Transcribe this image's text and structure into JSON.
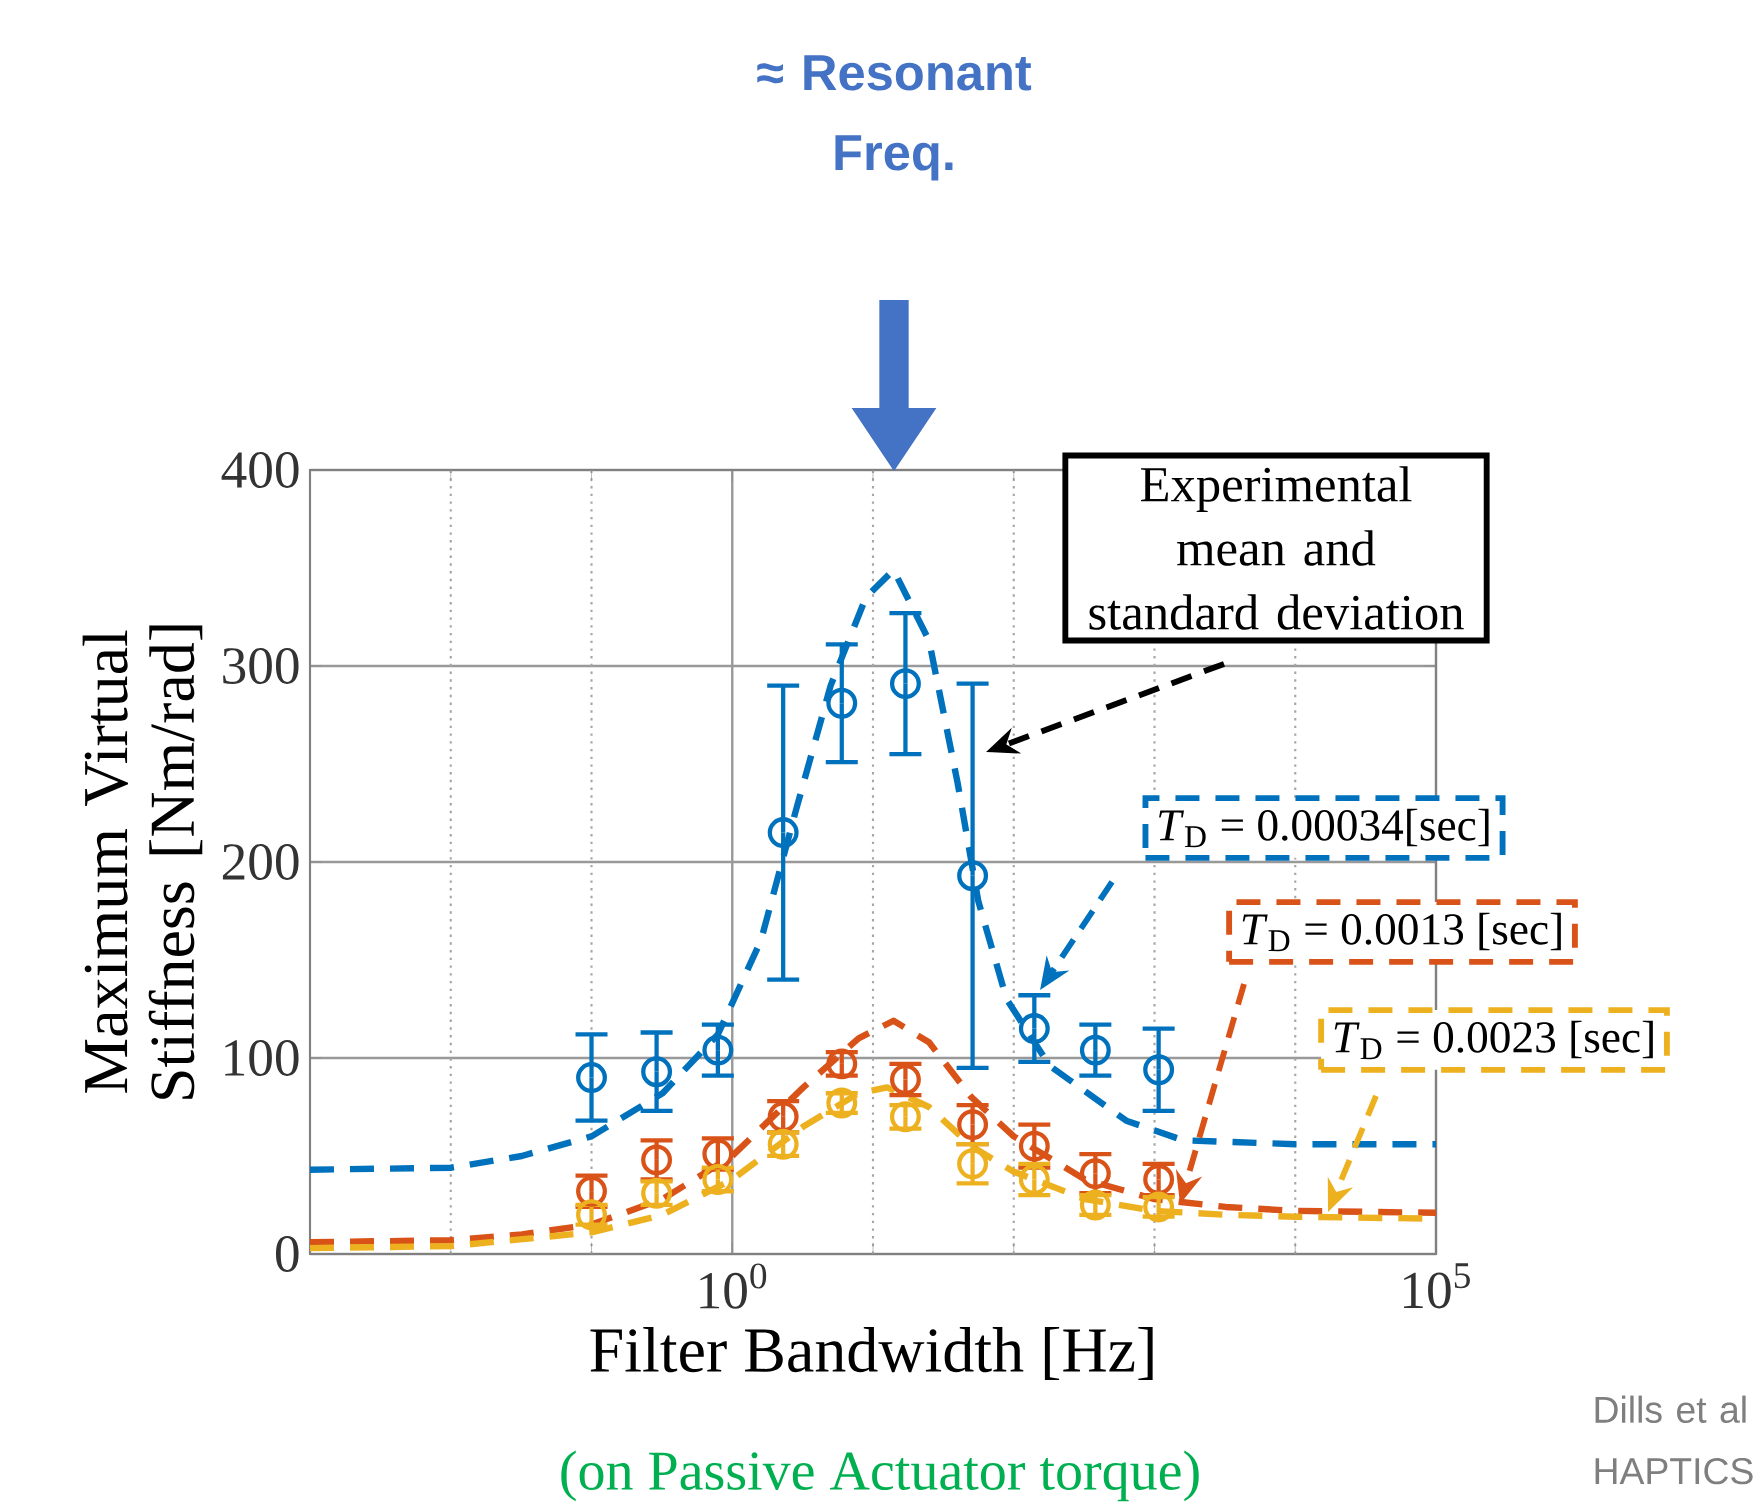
{
  "chart_data": {
    "type": "line",
    "xlabel": "Filter Bandwidth [Hz]",
    "ylabel": "Maximum Virtual Stiffness [Nm/rad]",
    "log": "x",
    "xlim": [
      0.001,
      100000
    ],
    "xticks": [
      {
        "value": 0.01,
        "label": null
      },
      {
        "value": 0.1,
        "label": null
      },
      {
        "value": 1,
        "label": "10$^{0}$"
      },
      {
        "value": 10,
        "label": null
      },
      {
        "value": 100,
        "label": null
      },
      {
        "value": 1000,
        "label": null
      },
      {
        "value": 10000,
        "label": null
      },
      {
        "value": 100000,
        "label": "10$^{5}$"
      }
    ],
    "ylim": [
      0,
      400
    ],
    "yticks": [
      0,
      100,
      200,
      300,
      400
    ],
    "grid": true,
    "series": [
      {
        "color": "#0072bd",
        "line_style": "dashed",
        "marker": "none",
        "x": [
          0.001,
          0.01,
          0.032,
          0.1,
          0.32,
          0.79,
          1.6,
          2.8,
          5,
          8.9,
          14,
          25,
          40,
          56,
          89,
          180,
          630,
          1600,
          10000,
          100000
        ],
        "values": [
          43,
          44,
          50,
          60,
          82,
          112,
          160,
          225,
          290,
          335,
          349,
          313,
          240,
          180,
          130,
          96,
          68,
          58,
          56,
          56
        ]
      },
      {
        "color": "#d95319",
        "line_style": "dashed",
        "marker": "none",
        "x": [
          0.001,
          0.01,
          0.032,
          0.1,
          0.32,
          1,
          3.2,
          7.9,
          14,
          25,
          50,
          100,
          320,
          1000,
          3200,
          10000,
          100000
        ],
        "values": [
          6,
          7,
          10,
          15,
          28,
          50,
          85,
          110,
          119,
          108,
          80,
          60,
          38,
          28,
          24,
          22,
          21
        ]
      },
      {
        "color": "#edb120",
        "line_style": "dashed",
        "marker": "none",
        "x": [
          0.001,
          0.01,
          0.1,
          0.32,
          1,
          3.2,
          7.9,
          12.6,
          25,
          50,
          100,
          320,
          1000,
          3200,
          10000,
          100000
        ],
        "values": [
          3,
          4,
          11,
          20,
          38,
          65,
          82,
          85,
          75,
          55,
          42,
          28,
          22,
          20,
          19,
          18
        ]
      },
      {
        "type": "scatter",
        "color": "#0072bd",
        "marker": "circle",
        "x": [
          0.1,
          0.29,
          0.79,
          2.3,
          6,
          17,
          51,
          140,
          380,
          1070
        ],
        "values": [
          90,
          93,
          104,
          215,
          281,
          291,
          193,
          115,
          104,
          94
        ],
        "errors": [
          22,
          20,
          13,
          75,
          30,
          36,
          98,
          17,
          13,
          21
        ]
      },
      {
        "type": "scatter",
        "color": "#d95319",
        "marker": "circle",
        "x": [
          0.1,
          0.29,
          0.79,
          2.3,
          6,
          17,
          51,
          140,
          380,
          1070
        ],
        "values": [
          32,
          48,
          51,
          70,
          97,
          89,
          66,
          55,
          41,
          38
        ],
        "errors": [
          8,
          10,
          8,
          8,
          6,
          8,
          10,
          11,
          10,
          8
        ]
      },
      {
        "type": "scatter",
        "color": "#edb120",
        "marker": "circle",
        "x": [
          0.1,
          0.29,
          0.79,
          2.3,
          6,
          17,
          51,
          140,
          380,
          1070
        ],
        "values": [
          20,
          31,
          38,
          56,
          77,
          70,
          46,
          38,
          25,
          24
        ],
        "errors": [
          5,
          6,
          6,
          6,
          5,
          6,
          10,
          8,
          5,
          5
        ]
      }
    ],
    "annotations": [
      "≈ Resonant Freq.",
      "Experimental mean and standard deviation",
      "*T*$_{D}$ = 0.00034[sec]",
      "*T*$_{D}$ = 0.0013 [sec]",
      "*T*$_{D}$ = 0.0023 [sec]",
      "(on Passive Actuator torque)",
      "Dills et al HAPTICS"
    ]
  }
}
